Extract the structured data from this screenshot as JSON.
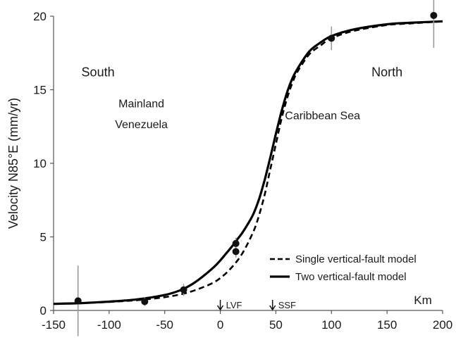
{
  "chart_data": {
    "type": "scatter",
    "xlabel": "Km",
    "ylabel": "Velocity N85°E  (mm/yr)",
    "xlim": [
      -150,
      200
    ],
    "ylim": [
      0,
      20
    ],
    "x_ticks": [
      -150,
      -100,
      -50,
      0,
      50,
      100,
      150,
      200
    ],
    "y_ticks": [
      0,
      5,
      10,
      15,
      20
    ],
    "grid": false,
    "legend_position": "bottom-right",
    "observations": [
      {
        "x": -128,
        "y": 0.65,
        "err": 2.4
      },
      {
        "x": -68,
        "y": 0.6,
        "err": 0.3
      },
      {
        "x": -33,
        "y": 1.4,
        "err": 0.4
      },
      {
        "x": 14,
        "y": 4.0,
        "err": 0.4
      },
      {
        "x": 14,
        "y": 4.55,
        "err": 0.4
      },
      {
        "x": 100,
        "y": 18.5,
        "err": 0.8
      },
      {
        "x": 192,
        "y": 20.05,
        "err": 2.2
      }
    ],
    "series": [
      {
        "name": "Single vertical-fault model",
        "style": "dashed",
        "x": [
          -150,
          -125,
          -100,
          -75,
          -50,
          -30,
          -10,
          0,
          10,
          20,
          30,
          35,
          40,
          45,
          50,
          55,
          60,
          65,
          70,
          80,
          90,
          100,
          120,
          150,
          170,
          200
        ],
        "y": [
          0.45,
          0.5,
          0.58,
          0.7,
          0.9,
          1.2,
          1.75,
          2.2,
          2.9,
          3.9,
          5.4,
          6.5,
          7.9,
          9.6,
          11.3,
          13.0,
          14.4,
          15.5,
          16.3,
          17.4,
          18.0,
          18.5,
          19.0,
          19.4,
          19.5,
          19.65
        ]
      },
      {
        "name": "Two vertical-fault model",
        "style": "solid",
        "x": [
          -150,
          -125,
          -100,
          -75,
          -50,
          -35,
          -25,
          -15,
          -5,
          0,
          5,
          10,
          15,
          20,
          25,
          30,
          35,
          40,
          45,
          50,
          55,
          60,
          65,
          70,
          80,
          90,
          100,
          120,
          150,
          170,
          200
        ],
        "y": [
          0.45,
          0.5,
          0.6,
          0.75,
          1.05,
          1.4,
          1.8,
          2.35,
          3.0,
          3.4,
          3.85,
          4.3,
          4.8,
          5.3,
          5.9,
          6.6,
          7.6,
          8.9,
          10.4,
          12.0,
          13.5,
          14.8,
          15.8,
          16.5,
          17.6,
          18.2,
          18.65,
          19.1,
          19.45,
          19.55,
          19.65
        ]
      }
    ],
    "annotations": [
      {
        "text": "South",
        "x": -110,
        "y": 15.9
      },
      {
        "text": "North",
        "x": 150,
        "y": 15.9
      },
      {
        "text": "Mainland",
        "x": -71,
        "y": 13.8
      },
      {
        "text": "Venezuela",
        "x": -71,
        "y": 12.4
      },
      {
        "text": "Caribbean Sea",
        "x": 92,
        "y": 13.0
      }
    ],
    "fault_markers": [
      {
        "label": "LVF",
        "x": 0
      },
      {
        "label": "SSF",
        "x": 47
      }
    ]
  }
}
